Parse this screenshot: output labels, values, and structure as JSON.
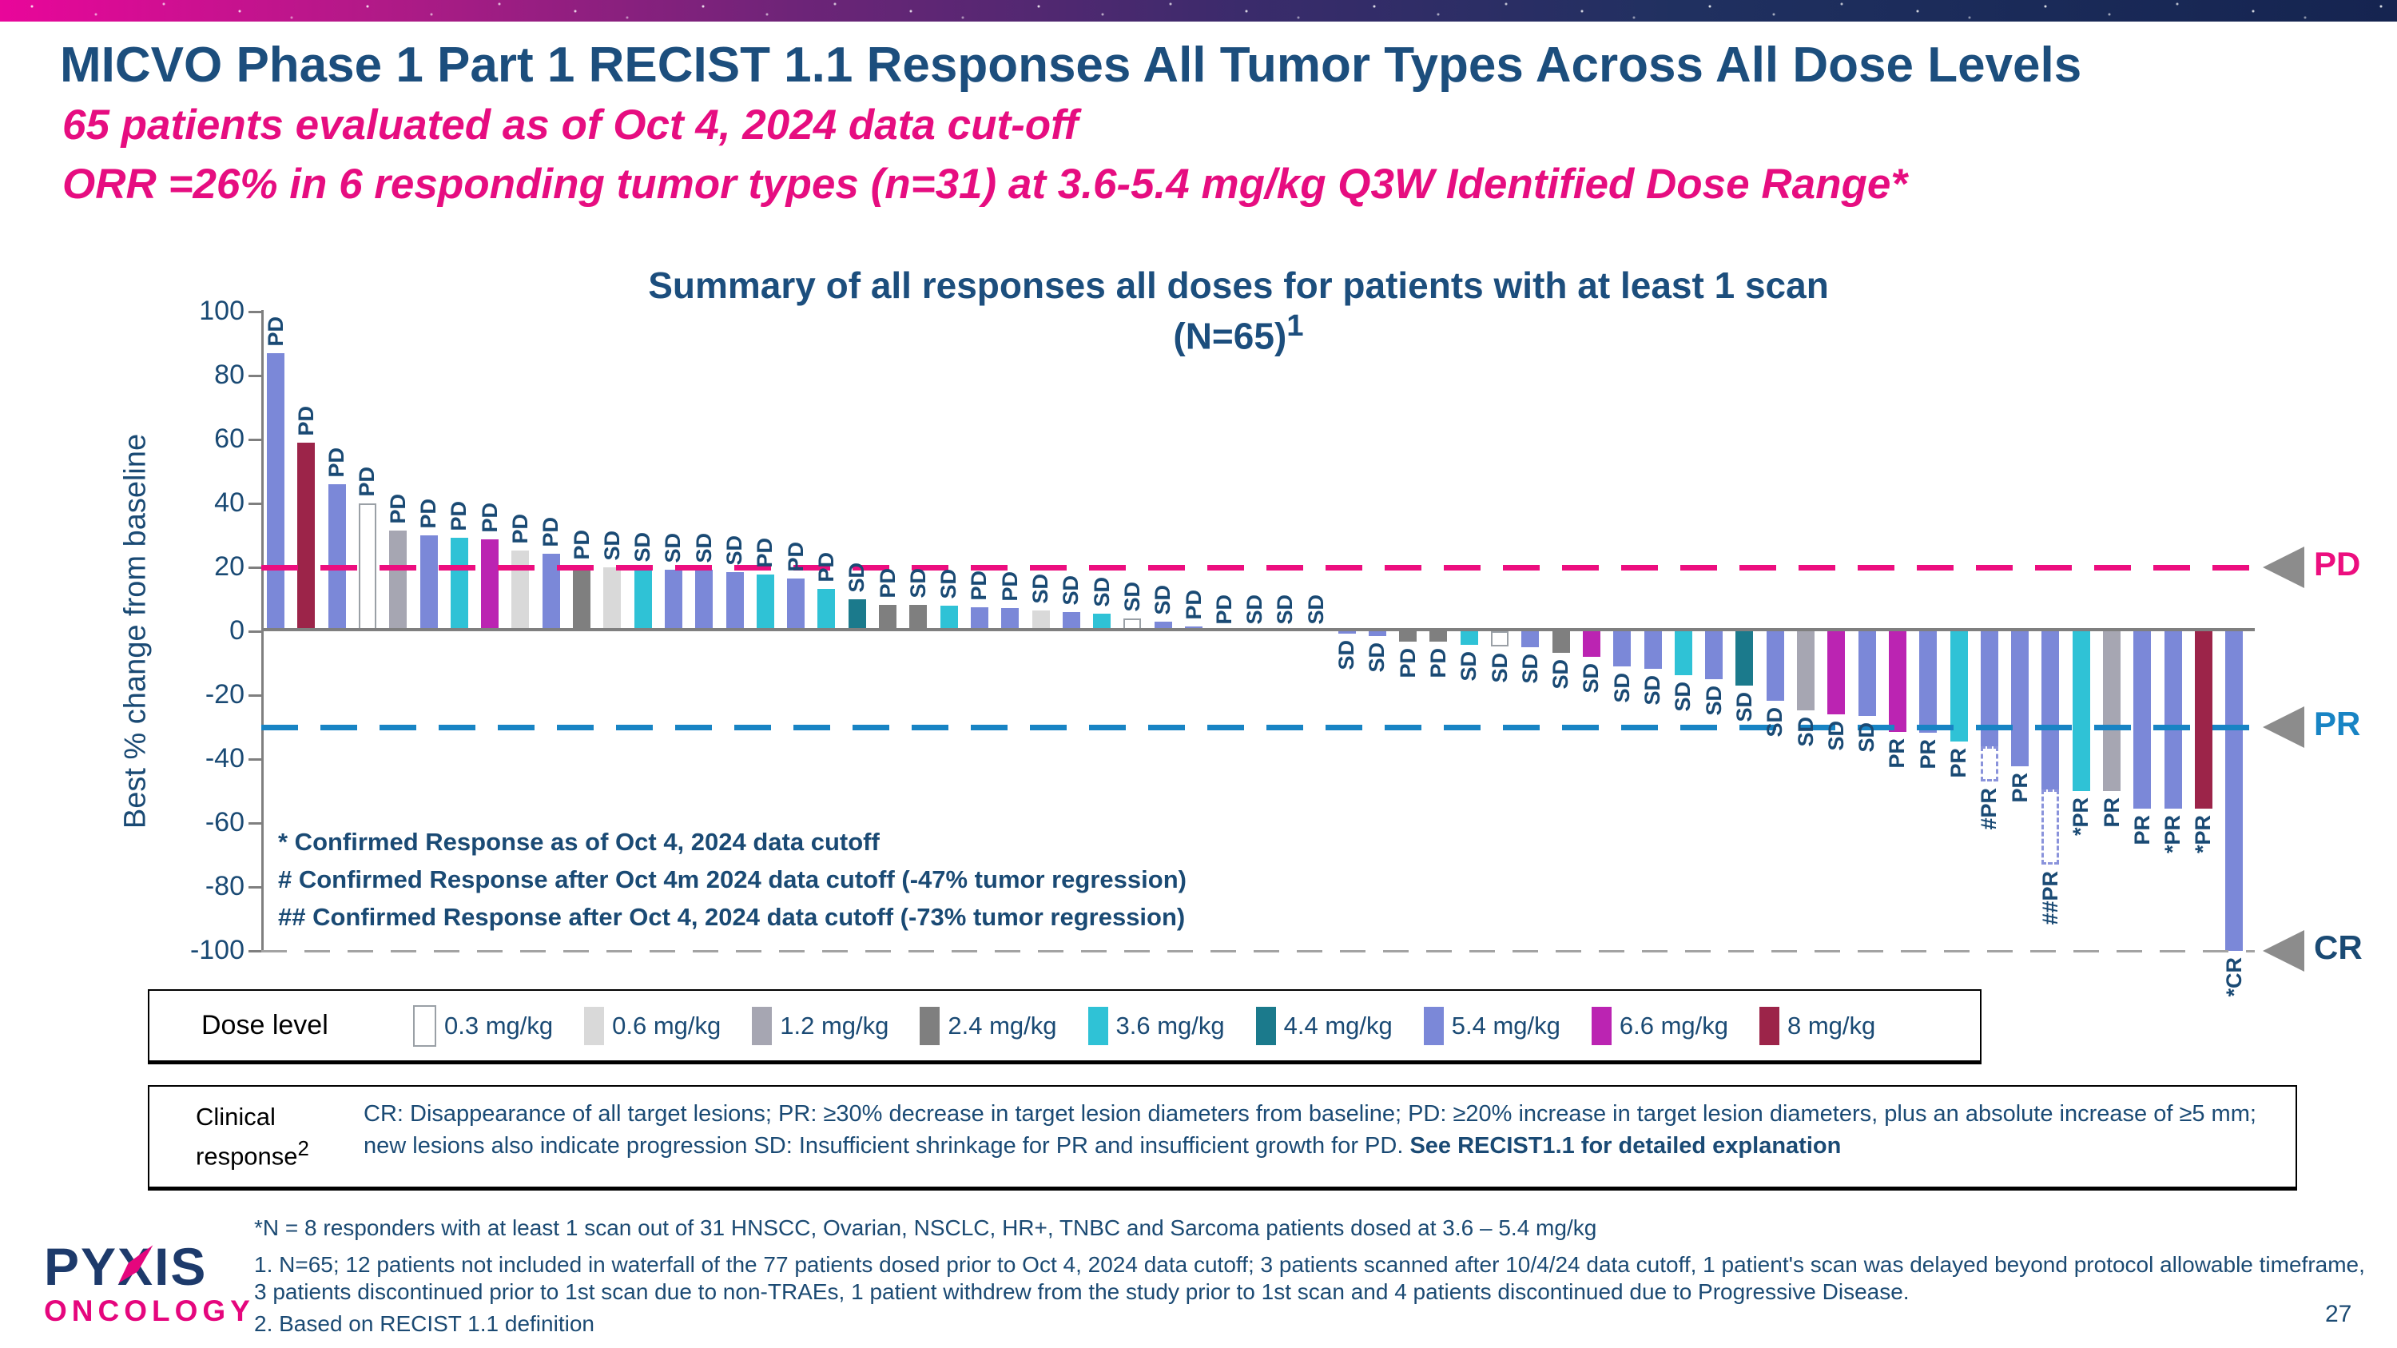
{
  "slide": {
    "title": "MICVO Phase 1 Part 1 RECIST 1.1 Responses All Tumor Types Across All Dose Levels",
    "subtitle1": "65 patients evaluated as of Oct 4, 2024 data cut-off",
    "subtitle2": "ORR =26% in 6 responding tumor types (n=31) at 3.6-5.4 mg/kg Q3W Identified Dose Range*",
    "page_number": "27",
    "logo": {
      "line1_part1": "PY",
      "line1_x": "X",
      "line1_part2": "IS",
      "line2": "ONCOLOGY"
    },
    "accent_colors": {
      "navy": "#1c4e7d",
      "magenta": "#e60d80"
    }
  },
  "chart_data": {
    "type": "bar",
    "title": "Summary of all responses all doses for patients with at least 1 scan",
    "title_line2": "(N=65)",
    "title_superscript": "1",
    "ylabel": "Best % change from baseline",
    "ylim": [
      -100,
      100
    ],
    "y_ticks": [
      100,
      80,
      60,
      40,
      20,
      0,
      -20,
      -40,
      -60,
      -80,
      -100
    ],
    "grid": false,
    "legend_title": "Dose level",
    "legend_position": "bottom",
    "ref_lines": [
      {
        "label": "PD",
        "value": 20,
        "line_color": "#ec0e7f",
        "label_color": "#ec0e7f"
      },
      {
        "label": "PR",
        "value": -30,
        "line_color": "#1884c4",
        "label_color": "#1884c4"
      },
      {
        "label": "CR",
        "value": -100,
        "line_color": "#a3a3a3",
        "label_color": "#1a4a74"
      }
    ],
    "dose_levels": [
      {
        "label": "0.3 mg/kg",
        "color": "#ffffff"
      },
      {
        "label": "0.6 mg/kg",
        "color": "#d9d9d9"
      },
      {
        "label": "1.2 mg/kg",
        "color": "#a6a6b2"
      },
      {
        "label": "2.4 mg/kg",
        "color": "#7f7f7f"
      },
      {
        "label": "3.6 mg/kg",
        "color": "#2fc2d6"
      },
      {
        "label": "4.4 mg/kg",
        "color": "#1b7a8c"
      },
      {
        "label": "5.4 mg/kg",
        "color": "#7b88d8"
      },
      {
        "label": "6.6 mg/kg",
        "color": "#bb24b2"
      },
      {
        "label": "8 mg/kg",
        "color": "#9c2449"
      }
    ],
    "annotations": [
      "* Confirmed Response as of Oct 4, 2024 data cutoff",
      "# Confirmed Response after Oct 4m 2024 data cutoff (-47% tumor regression)",
      "## Confirmed Response after Oct 4, 2024 data cutoff (-73% tumor regression)"
    ],
    "bars": [
      {
        "dose": "5.4 mg/kg",
        "value": 87,
        "response": "PD"
      },
      {
        "dose": "8 mg/kg",
        "value": 59,
        "response": "PD"
      },
      {
        "dose": "5.4 mg/kg",
        "value": 46,
        "response": "PD"
      },
      {
        "dose": "0.3 mg/kg",
        "value": 40,
        "response": "PD"
      },
      {
        "dose": "1.2 mg/kg",
        "value": 31.5,
        "response": "PD"
      },
      {
        "dose": "5.4 mg/kg",
        "value": 30,
        "response": "PD"
      },
      {
        "dose": "3.6 mg/kg",
        "value": 29.3,
        "response": "PD"
      },
      {
        "dose": "6.6 mg/kg",
        "value": 28.8,
        "response": "PD"
      },
      {
        "dose": "0.6 mg/kg",
        "value": 25.3,
        "response": "PD"
      },
      {
        "dose": "5.4 mg/kg",
        "value": 24.3,
        "response": "PD"
      },
      {
        "dose": "2.4 mg/kg",
        "value": 20.3,
        "response": "PD"
      },
      {
        "dose": "0.6 mg/kg",
        "value": 20,
        "response": "SD"
      },
      {
        "dose": "3.6 mg/kg",
        "value": 19.5,
        "response": "SD"
      },
      {
        "dose": "5.4 mg/kg",
        "value": 19.3,
        "response": "SD"
      },
      {
        "dose": "5.4 mg/kg",
        "value": 19.2,
        "response": "SD"
      },
      {
        "dose": "5.4 mg/kg",
        "value": 18.5,
        "response": "SD"
      },
      {
        "dose": "3.6 mg/kg",
        "value": 17.8,
        "response": "PD"
      },
      {
        "dose": "5.4 mg/kg",
        "value": 16.5,
        "response": "PD"
      },
      {
        "dose": "3.6 mg/kg",
        "value": 13.3,
        "response": "PD"
      },
      {
        "dose": "4.4 mg/kg",
        "value": 10,
        "response": "SD"
      },
      {
        "dose": "2.4 mg/kg",
        "value": 8.2,
        "response": "PD"
      },
      {
        "dose": "2.4 mg/kg",
        "value": 8.2,
        "response": "SD"
      },
      {
        "dose": "3.6 mg/kg",
        "value": 8,
        "response": "SD"
      },
      {
        "dose": "5.4 mg/kg",
        "value": 7.4,
        "response": "PD"
      },
      {
        "dose": "5.4 mg/kg",
        "value": 7.2,
        "response": "PD"
      },
      {
        "dose": "0.6 mg/kg",
        "value": 6.5,
        "response": "SD"
      },
      {
        "dose": "5.4 mg/kg",
        "value": 6,
        "response": "SD"
      },
      {
        "dose": "3.6 mg/kg",
        "value": 5.5,
        "response": "SD"
      },
      {
        "dose": "0.3 mg/kg",
        "value": 4,
        "response": "SD"
      },
      {
        "dose": "5.4 mg/kg",
        "value": 3,
        "response": "SD"
      },
      {
        "dose": "5.4 mg/kg",
        "value": 1.5,
        "response": "PD"
      },
      {
        "dose": null,
        "value": 0,
        "response": "PD"
      },
      {
        "dose": null,
        "value": 0,
        "response": "SD"
      },
      {
        "dose": null,
        "value": 0,
        "response": "SD"
      },
      {
        "dose": null,
        "value": 0,
        "response": "SD"
      },
      {
        "dose": "5.4 mg/kg",
        "value": -0.8,
        "response": "SD"
      },
      {
        "dose": "5.4 mg/kg",
        "value": -1.5,
        "response": "SD"
      },
      {
        "dose": "2.4 mg/kg",
        "value": -3.3,
        "response": "PD"
      },
      {
        "dose": "2.4 mg/kg",
        "value": -3.3,
        "response": "PD"
      },
      {
        "dose": "3.6 mg/kg",
        "value": -4.2,
        "response": "SD"
      },
      {
        "dose": "0.3 mg/kg",
        "value": -4.7,
        "response": "SD"
      },
      {
        "dose": "5.4 mg/kg",
        "value": -5.1,
        "response": "SD"
      },
      {
        "dose": "2.4 mg/kg",
        "value": -6.8,
        "response": "SD"
      },
      {
        "dose": "6.6 mg/kg",
        "value": -8,
        "response": "SD"
      },
      {
        "dose": "5.4 mg/kg",
        "value": -11,
        "response": "SD"
      },
      {
        "dose": "5.4 mg/kg",
        "value": -11.8,
        "response": "SD"
      },
      {
        "dose": "3.6 mg/kg",
        "value": -13.8,
        "response": "SD"
      },
      {
        "dose": "5.4 mg/kg",
        "value": -15,
        "response": "SD"
      },
      {
        "dose": "4.4 mg/kg",
        "value": -17,
        "response": "SD"
      },
      {
        "dose": "5.4 mg/kg",
        "value": -21.8,
        "response": "SD"
      },
      {
        "dose": "1.2 mg/kg",
        "value": -24.7,
        "response": "SD"
      },
      {
        "dose": "6.6 mg/kg",
        "value": -26,
        "response": "SD"
      },
      {
        "dose": "5.4 mg/kg",
        "value": -26.5,
        "response": "SD"
      },
      {
        "dose": "6.6 mg/kg",
        "value": -31.5,
        "response": "PR"
      },
      {
        "dose": "5.4 mg/kg",
        "value": -31.8,
        "response": "PR"
      },
      {
        "dose": "3.6 mg/kg",
        "value": -34.4,
        "response": "PR"
      },
      {
        "dose": "5.4 mg/kg",
        "value": -35.9,
        "response": "#PR",
        "dashed_to": -47
      },
      {
        "dose": "5.4 mg/kg",
        "value": -42.3,
        "response": "PR"
      },
      {
        "dose": "5.4 mg/kg",
        "value": -49.6,
        "response": "##PR",
        "dashed_to": -73
      },
      {
        "dose": "3.6 mg/kg",
        "value": -50.1,
        "response": "*PR"
      },
      {
        "dose": "1.2 mg/kg",
        "value": -50.1,
        "response": "PR"
      },
      {
        "dose": "5.4 mg/kg",
        "value": -55.4,
        "response": "PR"
      },
      {
        "dose": "5.4 mg/kg",
        "value": -55.4,
        "response": "*PR"
      },
      {
        "dose": "8 mg/kg",
        "value": -55.6,
        "response": "*PR"
      },
      {
        "dose": "5.4 mg/kg",
        "value": -100,
        "response": "*CR"
      }
    ]
  },
  "clinical_box": {
    "label": "Clinical response",
    "label_superscript": "2",
    "text": "CR: Disappearance of all target lesions; PR: ≥30% decrease in target lesion diameters from baseline; PD: ≥20% increase in target lesion diameters, plus an absolute increase of ≥5 mm; new lesions also indicate progression SD: Insufficient shrinkage for PR and insufficient growth for PD. ",
    "bold_text": "See RECIST1.1 for detailed explanation"
  },
  "footnotes": {
    "star": "*N = 8 responders with at least 1 scan out of 31 HNSCC, Ovarian, NSCLC, HR+, TNBC and Sarcoma patients dosed at 3.6 – 5.4 mg/kg",
    "note1": "1.  N=65; 12 patients not included in waterfall of the 77 patients dosed prior to Oct 4, 2024 data cutoff; 3 patients scanned after 10/4/24 data cutoff, 1 patient's scan was delayed beyond protocol allowable timeframe, 3 patients discontinued prior to 1st scan due to non-TRAEs, 1 patient withdrew from the study prior to 1st scan and 4 patients discontinued due to Progressive Disease.",
    "note2": "2. Based on RECIST 1.1 definition"
  }
}
